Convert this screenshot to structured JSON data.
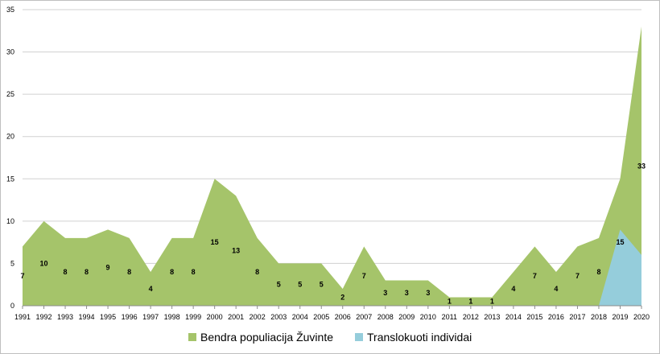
{
  "colors": {
    "series_1": "#a5c46a",
    "series_2": "#95cddb",
    "grid": "#d0d0d0",
    "axis": "#8c8c8c",
    "frame": "#bfbfbf"
  },
  "chart_data": {
    "type": "area",
    "title": "",
    "xlabel": "",
    "ylabel": "",
    "ylim": [
      0,
      35
    ],
    "yticks": [
      0,
      5,
      10,
      15,
      20,
      25,
      30,
      35
    ],
    "grid": true,
    "legend": "bottom",
    "categories": [
      "1991",
      "1992",
      "1993",
      "1994",
      "1995",
      "1996",
      "1997",
      "1998",
      "1999",
      "2000",
      "2001",
      "2002",
      "2003",
      "2004",
      "2005",
      "2006",
      "2007",
      "2008",
      "2009",
      "2010",
      "2011",
      "2012",
      "2013",
      "2014",
      "2015",
      "2016",
      "2017",
      "2018",
      "2019",
      "2020"
    ],
    "series": [
      {
        "name": "Bendra populiacija Žuvinte",
        "values": [
          7,
          10,
          8,
          8,
          9,
          8,
          4,
          8,
          8,
          15,
          13,
          8,
          5,
          5,
          5,
          2,
          7,
          3,
          3,
          3,
          1,
          1,
          1,
          4,
          7,
          4,
          7,
          8,
          15,
          33
        ],
        "labels": [
          "7",
          "10",
          "8",
          "8",
          "9",
          "8",
          "4",
          "8",
          "8",
          "15",
          "13",
          "8",
          "5",
          "5",
          "5",
          "2",
          "7",
          "3",
          "3",
          "3",
          "1",
          "1",
          "1",
          "4",
          "7",
          "4",
          "7",
          "8",
          "15",
          "33"
        ]
      },
      {
        "name": "Translokuoti individai",
        "values": [
          0,
          0,
          0,
          0,
          0,
          0,
          0,
          0,
          0,
          0,
          0,
          0,
          0,
          0,
          0,
          0,
          0,
          0,
          0,
          0,
          0,
          0,
          0,
          0,
          0,
          0,
          0,
          0,
          9,
          6
        ]
      }
    ]
  }
}
